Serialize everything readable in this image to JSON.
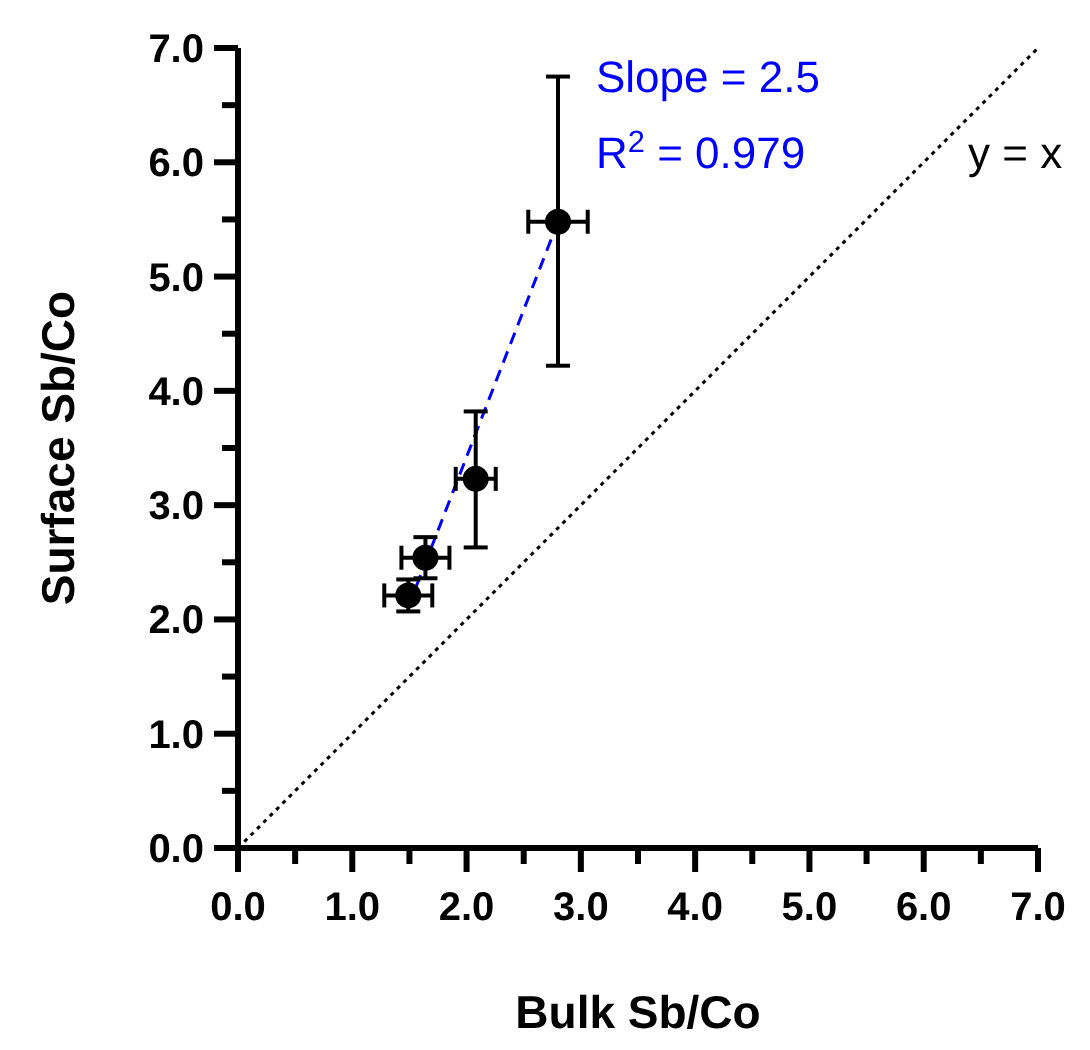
{
  "chart_data": {
    "type": "scatter",
    "xlabel": "Bulk Sb/Co",
    "ylabel": "Surface Sb/Co",
    "xlim": [
      0,
      7
    ],
    "ylim": [
      0,
      7
    ],
    "xticks": [
      {
        "value": 0,
        "label": "0.0"
      },
      {
        "value": 0.5,
        "label": null
      },
      {
        "value": 1,
        "label": "1.0"
      },
      {
        "value": 1.5,
        "label": null
      },
      {
        "value": 2,
        "label": "2.0"
      },
      {
        "value": 2.5,
        "label": null
      },
      {
        "value": 3,
        "label": "3.0"
      },
      {
        "value": 3.5,
        "label": null
      },
      {
        "value": 4,
        "label": "4.0"
      },
      {
        "value": 4.5,
        "label": null
      },
      {
        "value": 5,
        "label": "5.0"
      },
      {
        "value": 5.5,
        "label": null
      },
      {
        "value": 6,
        "label": "6.0"
      },
      {
        "value": 6.5,
        "label": null
      },
      {
        "value": 7,
        "label": "7.0"
      }
    ],
    "yticks": [
      {
        "value": 0,
        "label": "0.0"
      },
      {
        "value": 0.5,
        "label": null
      },
      {
        "value": 1,
        "label": "1.0"
      },
      {
        "value": 1.5,
        "label": null
      },
      {
        "value": 2,
        "label": "2.0"
      },
      {
        "value": 2.5,
        "label": null
      },
      {
        "value": 3,
        "label": "3.0"
      },
      {
        "value": 3.5,
        "label": null
      },
      {
        "value": 4,
        "label": "4.0"
      },
      {
        "value": 4.5,
        "label": null
      },
      {
        "value": 5,
        "label": "5.0"
      },
      {
        "value": 5.5,
        "label": null
      },
      {
        "value": 6,
        "label": "6.0"
      },
      {
        "value": 6.5,
        "label": null
      },
      {
        "value": 7,
        "label": "7.0"
      }
    ],
    "grid": false,
    "series": [
      {
        "type": "line",
        "color": "#000000",
        "x": [
          0,
          7
        ],
        "values": [
          0,
          7
        ],
        "line_style": "dotted",
        "marker": "none"
      },
      {
        "type": "line",
        "color": "#0000ff",
        "x": [
          1.56,
          2.8
        ],
        "values": [
          2.29,
          5.48
        ],
        "line_style": "dashed",
        "marker": "none"
      },
      {
        "type": "scatter",
        "color": "#000000",
        "marker": "circle",
        "x": [
          1.49,
          1.64,
          2.08,
          2.8
        ],
        "values": [
          2.21,
          2.54,
          3.23,
          5.48
        ],
        "errors": [
          [
            2.07,
            2.35
          ],
          [
            2.36,
            2.72
          ],
          [
            2.63,
            3.82
          ],
          [
            4.22,
            6.75
          ]
        ],
        "xerrors": [
          0.21,
          0.21,
          0.175,
          0.26
        ]
      }
    ],
    "annotations": [
      "Slope = 2.5",
      "R$^{2}$ = 0.979",
      "y = x"
    ]
  }
}
